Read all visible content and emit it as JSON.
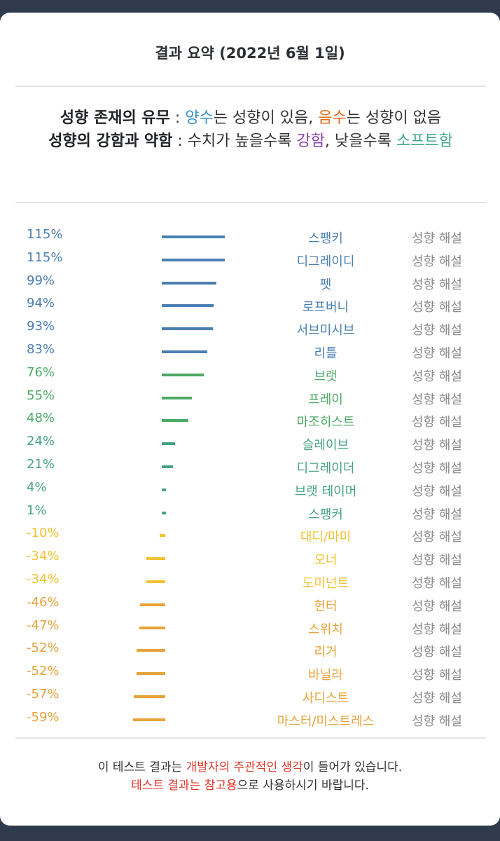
{
  "title": "결과 요약 (2022년 6월 1일)",
  "legend": {
    "line1_label": "성향 존재의 유무",
    "line1_sep": " : ",
    "line1_pos": "양수",
    "line1_pos_rest": "는 성향이 있음, ",
    "line1_neg": "음수",
    "line1_neg_rest": "는 성향이 없음",
    "line2_label": "성향의 강함과 약함",
    "line2_sep": " : 수치가 높을수록 ",
    "line2_strong": "강함",
    "line2_mid": ", 낮을수록 ",
    "line2_soft": "소프트함"
  },
  "colors": {
    "blue": "#4a7fb3",
    "green": "#4caa66",
    "teal": "#45a37f",
    "yellow": "#f1c232",
    "orange": "#e8a33a"
  },
  "chart_data": {
    "type": "bar",
    "categories": [
      "스팽키",
      "디그레이디",
      "펫",
      "로프버니",
      "서브미시브",
      "리틀",
      "브랫",
      "프레이",
      "마조히스트",
      "슬레이브",
      "디그레이더",
      "브랫 테이머",
      "스팽커",
      "대디/마미",
      "오너",
      "도미넌트",
      "헌터",
      "스위치",
      "리거",
      "바닐라",
      "사디스트",
      "마스터/미스트레스"
    ],
    "values": [
      115,
      115,
      99,
      94,
      93,
      83,
      76,
      55,
      48,
      24,
      21,
      4,
      1,
      -10,
      -34,
      -34,
      -46,
      -47,
      -52,
      -52,
      -57,
      -59
    ],
    "labels": [
      "115%",
      "115%",
      "99%",
      "94%",
      "93%",
      "83%",
      "76%",
      "55%",
      "48%",
      "24%",
      "21%",
      "4%",
      "1%",
      "-10%",
      "-34%",
      "-34%",
      "-46%",
      "-47%",
      "-52%",
      "-52%",
      "-57%",
      "-59%"
    ],
    "color_groups": [
      "blue",
      "blue",
      "blue",
      "blue",
      "blue",
      "blue",
      "green",
      "green",
      "green",
      "teal",
      "teal",
      "teal",
      "teal",
      "yellow",
      "yellow",
      "yellow",
      "orange",
      "orange",
      "orange",
      "orange",
      "orange",
      "orange"
    ],
    "link_label": "성향 해설"
  },
  "footer": {
    "line1_a": "이 테스트 결과는 ",
    "line1_red": "개발자의 주관적인 생각",
    "line1_b": "이 들어가 있습니다.",
    "line2_red": "테스트 결과는 참고용",
    "line2_b": "으로 사용하시기 바랍니다."
  }
}
